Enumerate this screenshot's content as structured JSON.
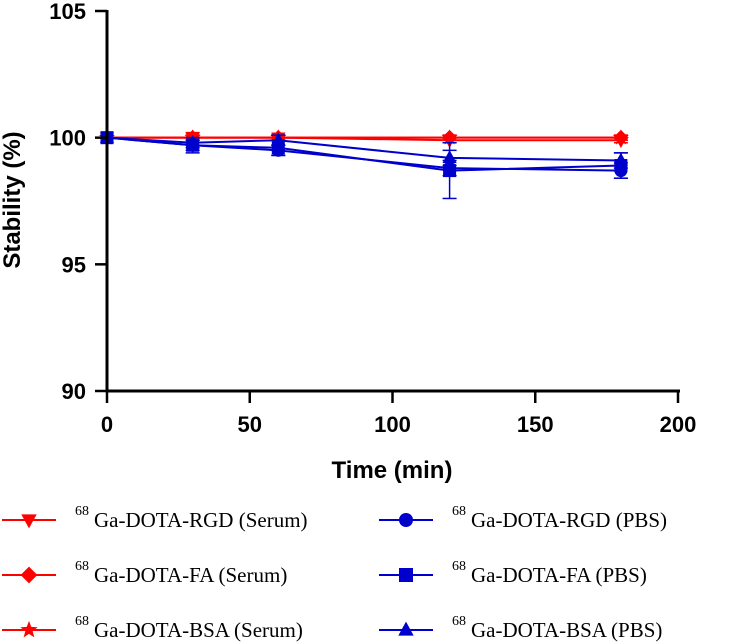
{
  "chart_data": {
    "type": "line",
    "xlabel": "Time (min)",
    "ylabel": "Stability (%)",
    "xlim": [
      0,
      200
    ],
    "ylim": [
      90,
      105
    ],
    "xticks": [
      0,
      50,
      100,
      150,
      200
    ],
    "yticks": [
      90,
      95,
      100,
      105
    ],
    "x": [
      0,
      30,
      60,
      120,
      180
    ],
    "series": [
      {
        "name": "Ga-DOTA-RGD (Serum)",
        "isotope": "68",
        "label": "Ga-DOTA-RGD (Serum)",
        "marker": "triangle-down",
        "color": "#ff0000",
        "values": [
          100,
          100,
          100,
          99.9,
          99.9
        ],
        "errors": [
          0,
          0.2,
          0.1,
          0.1,
          0.1
        ]
      },
      {
        "name": "Ga-DOTA-FA (Serum)",
        "isotope": "68",
        "label": "Ga-DOTA-FA (Serum)",
        "marker": "diamond",
        "color": "#ff0000",
        "values": [
          100,
          100,
          100,
          100,
          100
        ],
        "errors": [
          0,
          0.1,
          0.1,
          0.1,
          0.1
        ]
      },
      {
        "name": "Ga-DOTA-BSA (Serum)",
        "isotope": "68",
        "label": "Ga-DOTA-BSA (Serum)",
        "marker": "star",
        "color": "#ff0000",
        "values": [
          100,
          100,
          100,
          100,
          100
        ],
        "errors": [
          0,
          0.1,
          0.1,
          0.1,
          0.1
        ]
      },
      {
        "name": "Ga-DOTA-RGD (PBS)",
        "isotope": "68",
        "label": "Ga-DOTA-RGD (PBS)",
        "marker": "circle",
        "color": "#0000cc",
        "values": [
          100,
          99.7,
          99.5,
          98.8,
          98.7
        ],
        "errors": [
          0,
          0.2,
          0.2,
          0.3,
          0.3
        ]
      },
      {
        "name": "Ga-DOTA-FA (PBS)",
        "isotope": "68",
        "label": "Ga-DOTA-FA (PBS)",
        "marker": "square",
        "color": "#0000cc",
        "values": [
          100,
          99.7,
          99.6,
          98.7,
          98.9
        ],
        "errors": [
          0,
          0.3,
          0.3,
          1.1,
          0.5
        ]
      },
      {
        "name": "Ga-DOTA-BSA (PBS)",
        "isotope": "68",
        "label": "Ga-DOTA-BSA (PBS)",
        "marker": "triangle-up",
        "color": "#0000cc",
        "values": [
          100,
          99.8,
          99.9,
          99.2,
          99.1
        ],
        "errors": [
          0,
          0.2,
          0.2,
          0.3,
          0.3
        ]
      }
    ],
    "legend_position": "bottom"
  }
}
